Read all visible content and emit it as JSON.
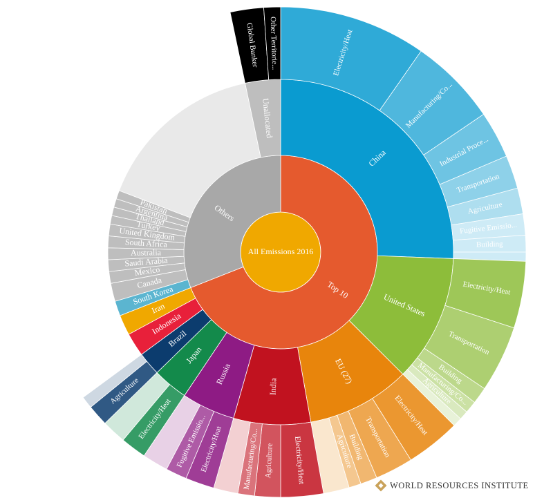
{
  "chart_data": {
    "type": "sunburst",
    "credit": "WORLD RESOURCES INSTITUTE",
    "root": {
      "name": "All Emissions 2016",
      "value": 100,
      "color": "#f0a800",
      "children": [
        {
          "name": "Top 10",
          "value": 69.0,
          "color": "#e55a2e",
          "children": [
            {
              "name": "China",
              "value": 25.6,
              "color": "#0a9bd0",
              "children": [
                {
                  "name": "Electricity/Heat",
                  "value": 9.7
                },
                {
                  "name": "Manufacturing/Co...",
                  "value": 5.8
                },
                {
                  "name": "Industrial Proce...",
                  "value": 3.1
                },
                {
                  "name": "Transportation",
                  "value": 2.2
                },
                {
                  "name": "Agriculture",
                  "value": 1.7
                },
                {
                  "name": "Fugitive Emissio...",
                  "value": 1.4
                },
                {
                  "name": "Building",
                  "value": 1.1
                },
                {
                  "name": null,
                  "value": 0.6
                }
              ]
            },
            {
              "name": "United States",
              "value": 11.9,
              "color": "#8dbd3a",
              "children": [
                {
                  "name": "Electricity/Heat",
                  "value": 4.4
                },
                {
                  "name": "Transportation",
                  "value": 4.4
                },
                {
                  "name": "Building",
                  "value": 1.1
                },
                {
                  "name": "Manufacturing/Co...",
                  "value": 0.8
                },
                {
                  "name": "Agriculture",
                  "value": 0.6
                },
                {
                  "name": null,
                  "value": 0.6
                }
              ]
            },
            {
              "name": "EU (27)",
              "value": 9.7,
              "color": "#e8850c",
              "children": [
                {
                  "name": "Electricity/Heat",
                  "value": 3.6
                },
                {
                  "name": "Transportation",
                  "value": 2.5
                },
                {
                  "name": "Building",
                  "value": 1.1
                },
                {
                  "name": "Agriculture",
                  "value": 0.8
                },
                {
                  "name": null,
                  "value": 1.7
                }
              ]
            },
            {
              "name": "India",
              "value": 7.2,
              "color": "#c1121f",
              "children": [
                {
                  "name": "Electricity/Heat",
                  "value": 2.8
                },
                {
                  "name": "Agriculture",
                  "value": 1.7
                },
                {
                  "name": "Manufacturing/Co...",
                  "value": 1.1
                },
                {
                  "name": null,
                  "value": 1.6
                }
              ]
            },
            {
              "name": "Russia",
              "value": 5.0,
              "color": "#8e1b84",
              "children": [
                {
                  "name": "Electricity/Heat",
                  "value": 1.9
                },
                {
                  "name": "Fugitive Emissio...",
                  "value": 1.4
                },
                {
                  "name": null,
                  "value": 1.7
                }
              ]
            },
            {
              "name": "Japan",
              "value": 3.3,
              "color": "#138a4b",
              "children": [
                {
                  "name": "Electricity/Heat",
                  "value": 1.7
                },
                {
                  "name": null,
                  "value": 1.6
                }
              ]
            },
            {
              "name": "Brazil",
              "value": 2.2,
              "color": "#0c3c6e",
              "children": [
                {
                  "name": "Agriculture",
                  "value": 1.4
                },
                {
                  "name": null,
                  "value": 0.8
                }
              ]
            },
            {
              "name": "Indonesia",
              "value": 2.2,
              "color": "#e8203a"
            },
            {
              "name": "Iran",
              "value": 1.9,
              "color": "#f0a800"
            }
          ]
        },
        {
          "name": "Others",
          "value": 31.0,
          "color": "#a8a8a8",
          "children": [
            {
              "name": "South Korea",
              "value": 1.4,
              "color": "#5bb5d0"
            },
            {
              "name": "Canada",
              "value": 1.7
            },
            {
              "name": "Mexico",
              "value": 1.1
            },
            {
              "name": "Saudi Arabia",
              "value": 1.1
            },
            {
              "name": "Australia",
              "value": 1.1
            },
            {
              "name": "South Africa",
              "value": 1.1
            },
            {
              "name": "United Kingdom",
              "value": 1.1
            },
            {
              "name": "Turkey",
              "value": 0.8
            },
            {
              "name": "Thailand",
              "value": 0.8
            },
            {
              "name": "Argentina",
              "value": 0.8
            },
            {
              "name": "Pakistan",
              "value": 0.8
            },
            {
              "name": null,
              "value": 15.9
            },
            {
              "name": "Unallocated",
              "value": 3.3,
              "children": [
                {
                  "name": "Global Bunker",
                  "value": 2.2
                },
                {
                  "name": "Other Territorie...",
                  "value": 1.1
                }
              ]
            }
          ]
        }
      ]
    }
  }
}
